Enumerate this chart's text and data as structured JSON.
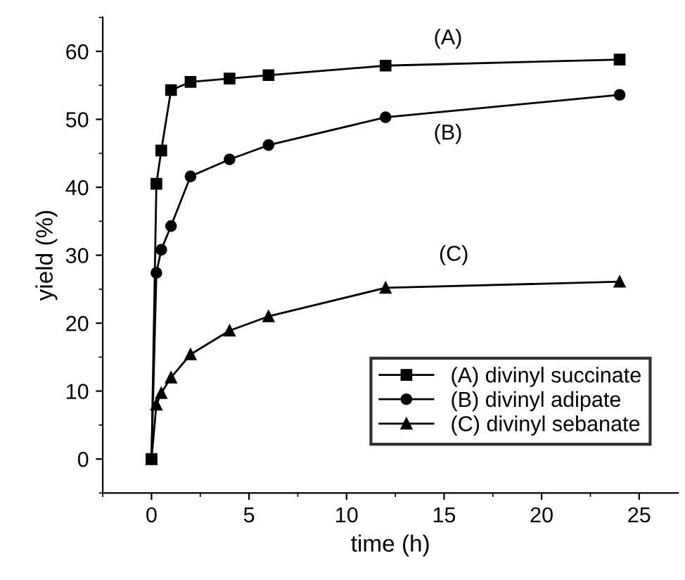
{
  "chart_data": {
    "type": "line",
    "xlabel": "time (h)",
    "ylabel": "yield (%)",
    "x": [
      0,
      0.25,
      0.5,
      1,
      2,
      4,
      6,
      12,
      24
    ],
    "series": [
      {
        "name": "(A) divinyl succinate",
        "color": "#000000",
        "marker": "square",
        "values": [
          0,
          40.5,
          45.4,
          54.3,
          55.5,
          56,
          56.5,
          57.9,
          58.8
        ]
      },
      {
        "name": "(B) divinyl adipate",
        "color": "#000000",
        "marker": "circle",
        "values": [
          0,
          27.4,
          30.8,
          34.3,
          41.6,
          44.1,
          46.2,
          50.3,
          53.6
        ]
      },
      {
        "name": "(C) divinyl sebanate",
        "color": "#000000",
        "marker": "triangle",
        "values": [
          0,
          8,
          9.7,
          12,
          15.4,
          18.9,
          21,
          25.2,
          26.1
        ]
      }
    ],
    "annotations": [
      "(A)",
      "(B)",
      "(C)"
    ],
    "xlim": [
      -2.5,
      27
    ],
    "ylim": [
      -5,
      65
    ],
    "xticks": [
      0,
      5,
      10,
      15,
      20,
      25
    ],
    "yticks": [
      0,
      10,
      20,
      30,
      40,
      50,
      60
    ],
    "grid": false,
    "legend": "bottom right",
    "line_style": "solid"
  }
}
